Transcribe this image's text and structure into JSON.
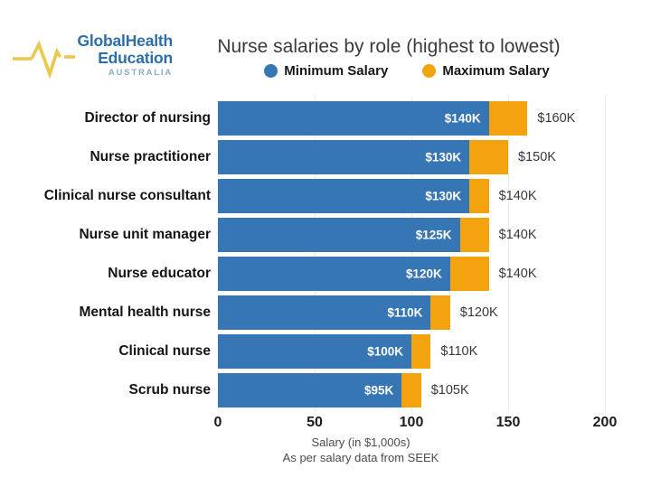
{
  "logo": {
    "line1": "GlobalHealth",
    "line2": "Education",
    "line3": "AUSTRALIA"
  },
  "header": {
    "title": "Nurse salaries by role (highest to lowest)"
  },
  "chart_data": {
    "type": "bar",
    "orientation": "horizontal",
    "title": "Nurse salaries by role (highest to lowest)",
    "categories": [
      "Director of nursing",
      "Nurse practitioner",
      "Clinical nurse consultant",
      "Nurse unit manager",
      "Nurse educator",
      "Mental health nurse",
      "Clinical nurse",
      "Scrub nurse"
    ],
    "series": [
      {
        "name": "Minimum Salary",
        "color": "#3776b4",
        "values": [
          140,
          130,
          130,
          125,
          120,
          110,
          100,
          95
        ]
      },
      {
        "name": "Maximum Salary",
        "color": "#f2a30e",
        "values": [
          160,
          150,
          140,
          140,
          140,
          120,
          110,
          105
        ]
      }
    ],
    "min_value_labels": [
      "$140K",
      "$130K",
      "$130K",
      "$125K",
      "$120K",
      "$110K",
      "$100K",
      "$95K"
    ],
    "max_value_labels": [
      "$160K",
      "$150K",
      "$140K",
      "$140K",
      "$140K",
      "$120K",
      "$110K",
      "$105K"
    ],
    "xlabel": "Salary (in $1,000s)",
    "source": "As per salary data from SEEK",
    "xlim": [
      0,
      200
    ],
    "xticks": [
      0,
      50,
      100,
      150,
      200
    ],
    "xtick_labels": [
      "0",
      "50",
      "100",
      "150",
      "200"
    ],
    "legend_position": "top",
    "grid": "vertical-light",
    "colors": {
      "minimum": "#3776b4",
      "maximum": "#f2a30e",
      "logo_blue": "#2d6ea5",
      "logo_light_blue": "#8aabd0",
      "logo_pulse_yellow": "#e9c84a",
      "title_text": "#3b3b3b",
      "background": "#ffffff"
    }
  }
}
